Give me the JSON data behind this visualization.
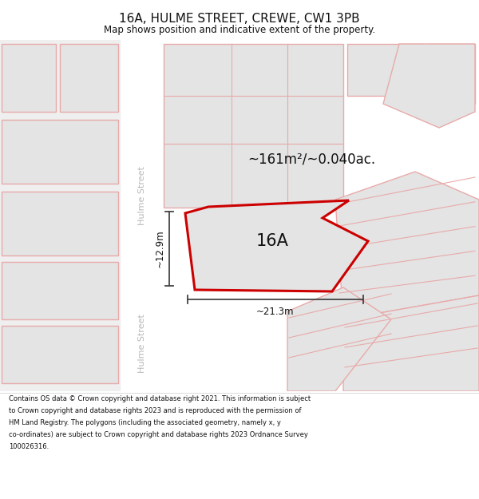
{
  "title": "16A, HULME STREET, CREWE, CW1 3PB",
  "subtitle": "Map shows position and indicative extent of the property.",
  "footer": "Contains OS data © Crown copyright and database right 2021. This information is subject to Crown copyright and database rights 2023 and is reproduced with the permission of HM Land Registry. The polygons (including the associated geometry, namely x, y co-ordinates) are subject to Crown copyright and database rights 2023 Ordnance Survey 100026316.",
  "street_label": "Hulme Street",
  "property_label": "16A",
  "area_label": "~161m²/~0.040ac.",
  "width_label": "~21.3m",
  "height_label": "~12.9m",
  "bg_color": "#ffffff",
  "map_bg": "#efefef",
  "street_fill": "#ffffff",
  "parcel_fill": "#e4e4e4",
  "parcel_edge": "#e8aaaa",
  "highlight_fill": "#e4e4e4",
  "highlight_edge": "#cc0000",
  "street_text_color": "#b8b8b8",
  "dim_color": "#444444",
  "label_color": "#111111",
  "title_fontsize": 11,
  "subtitle_fontsize": 8.5,
  "footer_fontsize": 6.0,
  "street_label_fontsize": 8.0,
  "property_fontsize": 15,
  "area_fontsize": 12,
  "dim_fontsize": 8.5
}
